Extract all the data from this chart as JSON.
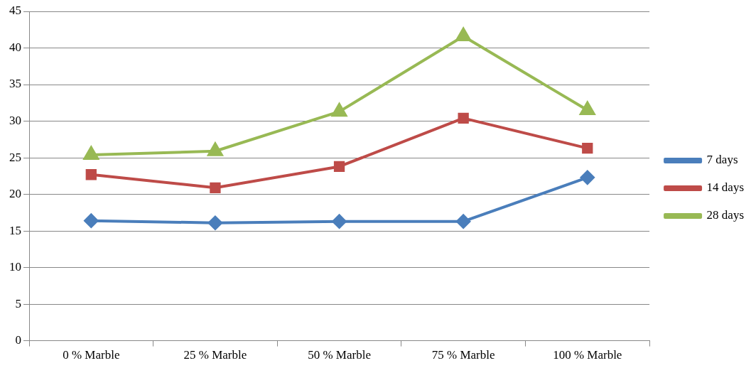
{
  "chart_data": {
    "type": "line",
    "categories": [
      "0 % Marble",
      "25 % Marble",
      "50 % Marble",
      "75 % Marble",
      "100 % Marble"
    ],
    "series": [
      {
        "name": "7 days",
        "color": "#4a7ebb",
        "marker": "diamond",
        "values": [
          16.4,
          16.1,
          16.3,
          16.3,
          22.3
        ]
      },
      {
        "name": "14 days",
        "color": "#be4b48",
        "marker": "square",
        "values": [
          22.7,
          20.9,
          23.8,
          30.4,
          26.3
        ]
      },
      {
        "name": "28 days",
        "color": "#98b954",
        "marker": "triangle",
        "values": [
          25.4,
          25.9,
          31.3,
          41.6,
          31.5
        ]
      }
    ],
    "ylim": [
      0,
      45
    ],
    "yticks": [
      0,
      5,
      10,
      15,
      20,
      25,
      30,
      35,
      40,
      45
    ],
    "grid": "y",
    "legend": "right",
    "line_style": "solid"
  }
}
